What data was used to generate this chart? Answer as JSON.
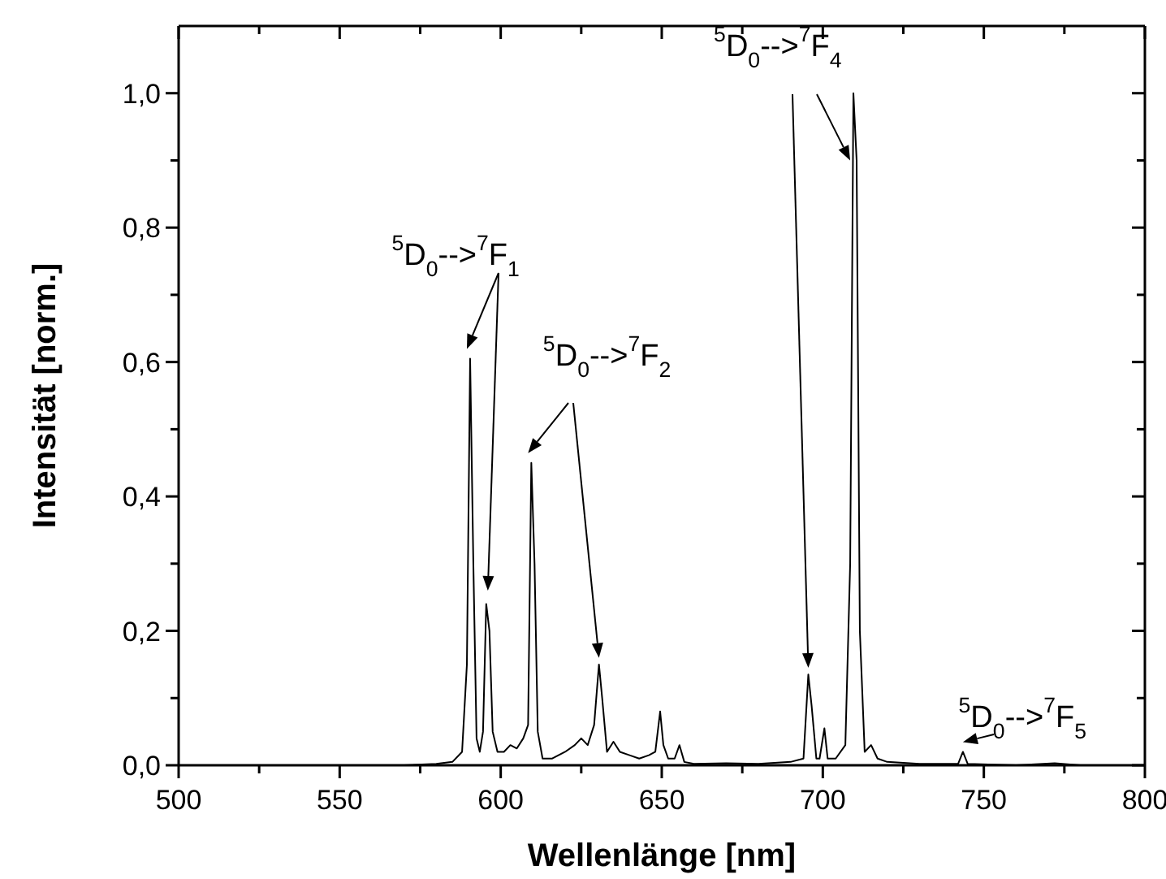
{
  "chart_data": {
    "type": "line",
    "xlabel": "Wellenlänge [nm]",
    "ylabel": "Intensität [norm.]",
    "x": [
      500,
      570,
      580,
      585,
      588,
      589.5,
      590.5,
      591.5,
      592.5,
      593.5,
      594.5,
      595.5,
      596.5,
      597.5,
      599,
      601,
      603,
      605,
      607,
      608.5,
      609.5,
      610.5,
      611.5,
      613,
      616,
      620,
      623,
      625,
      627,
      629,
      630.5,
      631.5,
      633,
      635,
      637,
      640,
      643,
      646,
      648,
      649.5,
      650.5,
      652,
      654,
      655.5,
      657,
      660,
      670,
      680,
      690,
      694,
      695.5,
      696.5,
      698,
      699,
      700.5,
      701.5,
      704,
      707,
      708.5,
      709.5,
      710.5,
      711.5,
      713,
      715,
      717,
      720,
      730,
      742,
      743.5,
      745,
      760,
      772,
      780,
      800
    ],
    "series": [
      {
        "color": "#000000",
        "values": [
          0,
          0,
          0.002,
          0.005,
          0.02,
          0.15,
          0.605,
          0.3,
          0.04,
          0.02,
          0.05,
          0.24,
          0.2,
          0.05,
          0.02,
          0.02,
          0.03,
          0.025,
          0.04,
          0.06,
          0.45,
          0.3,
          0.05,
          0.01,
          0.01,
          0.02,
          0.03,
          0.04,
          0.03,
          0.06,
          0.15,
          0.1,
          0.02,
          0.035,
          0.02,
          0.015,
          0.01,
          0.015,
          0.02,
          0.08,
          0.03,
          0.01,
          0.01,
          0.03,
          0.005,
          0.002,
          0.003,
          0.002,
          0.005,
          0.01,
          0.135,
          0.09,
          0.01,
          0.01,
          0.055,
          0.01,
          0.01,
          0.03,
          0.3,
          1.0,
          0.9,
          0.2,
          0.02,
          0.03,
          0.01,
          0.005,
          0.002,
          0.002,
          0.02,
          0.002,
          0,
          0.003,
          0,
          0
        ]
      }
    ],
    "xlim": [
      500,
      800
    ],
    "xticks": [
      500,
      {
        "value": 525,
        "label": null
      },
      550,
      {
        "value": 575,
        "label": null
      },
      600,
      {
        "value": 625,
        "label": null
      },
      650,
      {
        "value": 675,
        "label": null
      },
      700,
      {
        "value": 725,
        "label": null
      },
      750,
      {
        "value": 775,
        "label": null
      },
      800
    ],
    "ylim": [
      0,
      1.1
    ],
    "yticks": [
      {
        "value": 0,
        "label": "0,0"
      },
      {
        "value": 0.1,
        "label": null
      },
      {
        "value": 0.2,
        "label": "0,2"
      },
      {
        "value": 0.3,
        "label": null
      },
      {
        "value": 0.4,
        "label": "0,4"
      },
      {
        "value": 0.5,
        "label": null
      },
      {
        "value": 0.6,
        "label": "0,6"
      },
      {
        "value": 0.7,
        "label": null
      },
      {
        "value": 0.8,
        "label": "0,8"
      },
      {
        "value": 0.9,
        "label": null
      },
      {
        "value": 1.0,
        "label": "1,0"
      }
    ],
    "annotations": [
      {
        "text": "$^{5}$D$_{0}$-->$^{7}$F$_{1}$",
        "x": 590.5,
        "y": 0.605
      },
      {
        "text": "$^{5}$D$_{0}$-->$^{7}$F$_{2}$",
        "x": 609.5,
        "y": 0.45
      },
      {
        "text": "$^{5}$D$_{0}$-->$^{7}$F$_{4}$",
        "x": 709.5,
        "y": 0.9
      },
      {
        "text": "$^{5}$D$_{0}$-->$^{7}$F$_{5}$",
        "x": 743.5,
        "y": 0.02
      }
    ],
    "marker": "none",
    "line_style": "solid"
  }
}
